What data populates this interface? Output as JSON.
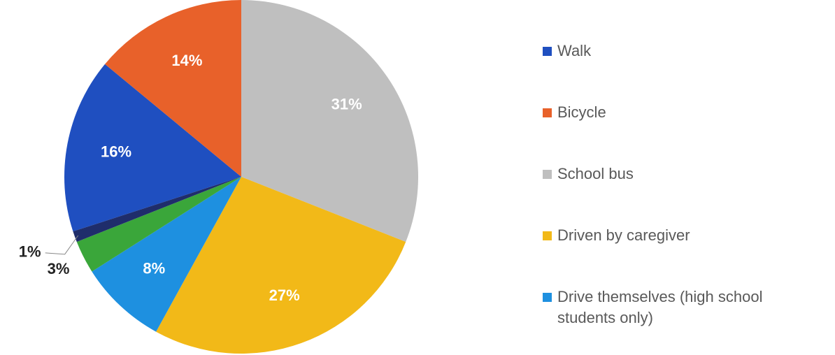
{
  "chart_data": {
    "type": "pie",
    "categories": [
      "Walk",
      "Bicycle",
      "School bus",
      "Driven by caregiver",
      "Drive themselves (high school students only)",
      null,
      null
    ],
    "values": [
      16,
      14,
      31,
      27,
      8,
      3,
      1
    ],
    "value_labels": [
      "16%",
      "14%",
      "31%",
      "27%",
      "8%",
      "3%",
      "1%"
    ],
    "colors": [
      "#1f4fc0",
      "#e8612a",
      "#bfbfbf",
      "#f2b918",
      "#1e90e0",
      "#3aa63a",
      "#1f2d6b"
    ],
    "legend": "right"
  }
}
